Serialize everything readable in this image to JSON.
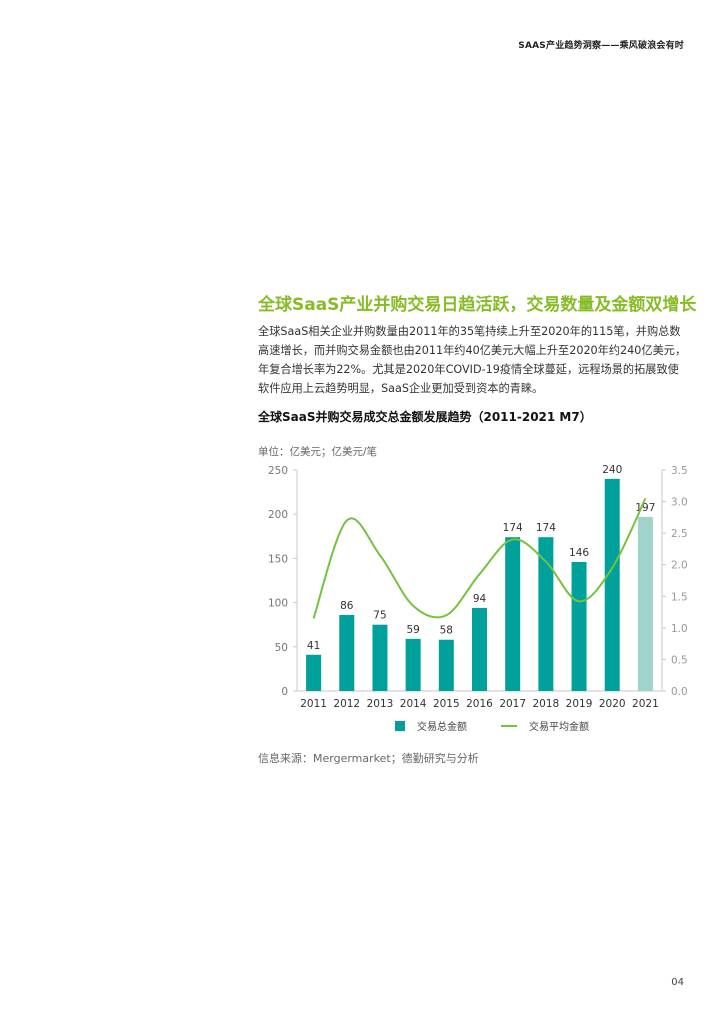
{
  "header": {
    "running_title": "SAAS产业趋势洞察——乘风破浪会有时"
  },
  "section": {
    "title": "全球SaaS产业并购交易日趋活跃，交易数量及金额双增长",
    "paragraph": "全球SaaS相关企业并购数量由2011年的35笔持续上升至2020年的115笔，并购总数高速增长，而并购交易金额也由2011年约40亿美元大幅上升至2020年约240亿美元，年复合增长率为22%。尤其是2020年COVID-19疫情全球蔓延，远程场景的拓展致使软件应用上云趋势明显，SaaS企业更加受到资本的青睐。"
  },
  "chart_data": {
    "type": "bar",
    "title": "全球SaaS并购交易成交总金额发展趋势（2011-2021 M7）",
    "unit_label": "单位：亿美元；亿美元/笔",
    "categories": [
      "2011",
      "2012",
      "2013",
      "2014",
      "2015",
      "2016",
      "2017",
      "2018",
      "2019",
      "2020",
      "2021"
    ],
    "series": [
      {
        "name": "交易总金额",
        "type": "bar",
        "axis": "left",
        "values": [
          41,
          86,
          75,
          59,
          58,
          94,
          174,
          174,
          146,
          240,
          197
        ],
        "color": "#00a19b",
        "highlight_last_color": "#9fd3cc"
      },
      {
        "name": "交易平均金额",
        "type": "line",
        "axis": "right",
        "values": [
          1.15,
          2.7,
          2.15,
          1.35,
          1.2,
          1.85,
          2.4,
          2.05,
          1.42,
          1.95,
          3.05
        ],
        "color": "#74c23e"
      }
    ],
    "y_left": {
      "min": 0,
      "max": 250,
      "ticks": [
        "0",
        "50",
        "100",
        "150",
        "200",
        "250"
      ]
    },
    "y_right": {
      "min": 0,
      "max": 3.5,
      "ticks": [
        "0.0",
        "0.5",
        "1.0",
        "1.5",
        "2.0",
        "2.5",
        "3.0",
        "3.5"
      ]
    },
    "grid": false,
    "legend_position": "bottom"
  },
  "source_note": "信息来源：Mergermarket；德勤研究与分析",
  "page_number": "04"
}
